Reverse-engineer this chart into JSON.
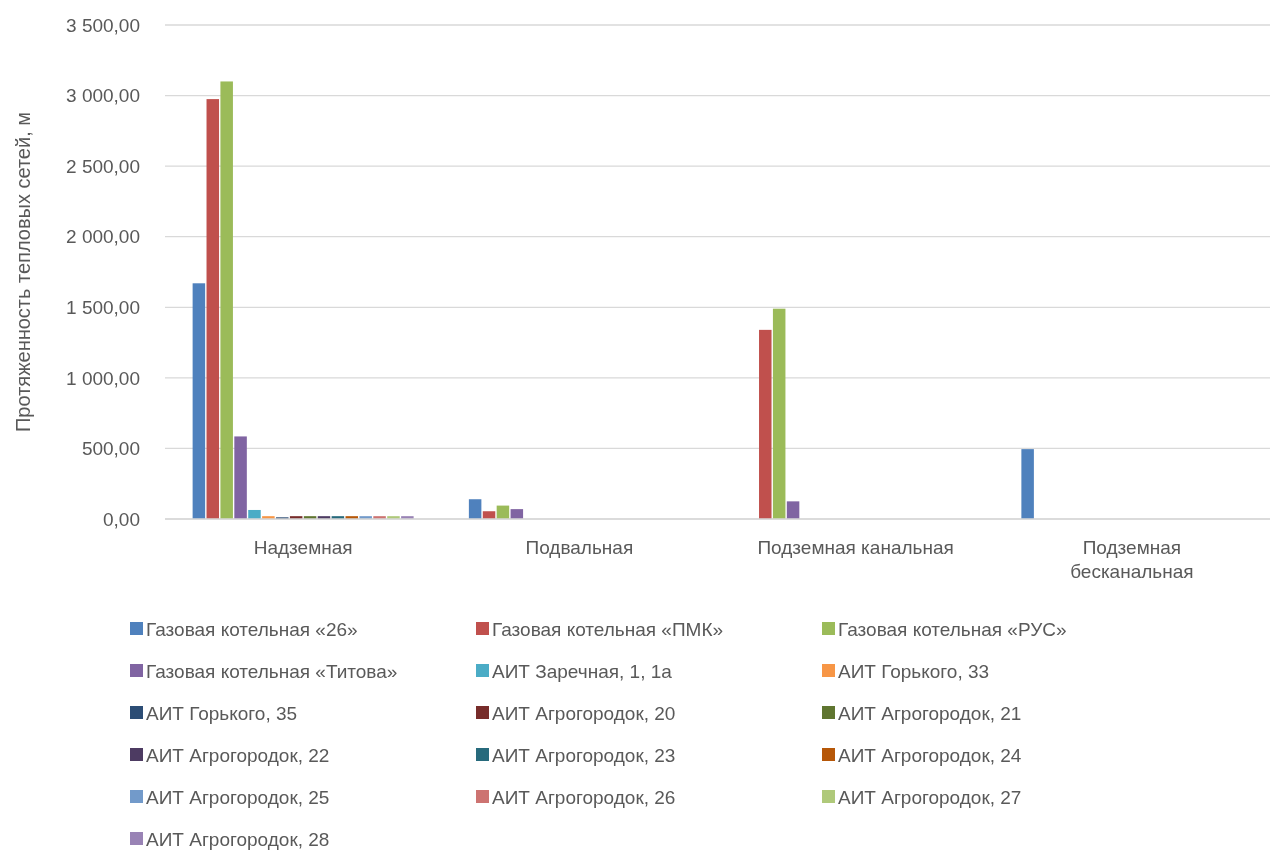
{
  "chart_data": {
    "type": "bar",
    "ylabel": "Протяженность тепловых сетей, м",
    "categories": [
      "Надземная",
      "Подвальная",
      "Подземная канальная",
      "Подземная бесканальная"
    ],
    "ylim": [
      0,
      3500
    ],
    "yticks": [
      {
        "value": 0,
        "label": "0,00"
      },
      {
        "value": 500,
        "label": "500,00"
      },
      {
        "value": 1000,
        "label": "1 000,00"
      },
      {
        "value": 1500,
        "label": "1 500,00"
      },
      {
        "value": 2000,
        "label": "2 000,00"
      },
      {
        "value": 2500,
        "label": "2 500,00"
      },
      {
        "value": 3000,
        "label": "3 000,00"
      },
      {
        "value": 3500,
        "label": "3 500,00"
      }
    ],
    "grid": "y",
    "legend": "bottom",
    "series": [
      {
        "name": "Газовая котельная «26»",
        "color": "#4f81bd",
        "values": [
          1670,
          140,
          null,
          495
        ]
      },
      {
        "name": "Газовая котельная «ПМК»",
        "color": "#c0504d",
        "values": [
          2975,
          55,
          1340,
          null
        ]
      },
      {
        "name": "Газовая котельная «РУС»",
        "color": "#9bbb59",
        "values": [
          3100,
          95,
          1490,
          null
        ]
      },
      {
        "name": "Газовая котельная «Титова»",
        "color": "#8064a2",
        "values": [
          585,
          70,
          125,
          null
        ]
      },
      {
        "name": "АИТ Заречная, 1, 1а",
        "color": "#4bacc6",
        "values": [
          64,
          null,
          null,
          null
        ]
      },
      {
        "name": "АИТ Горького, 33",
        "color": "#f79646",
        "values": [
          20,
          null,
          null,
          null
        ]
      },
      {
        "name": "АИТ Горького, 35",
        "color": "#2c4d75",
        "values": [
          12,
          null,
          null,
          null
        ]
      },
      {
        "name": "АИТ Агрогородок, 20",
        "color": "#772c2a",
        "values": [
          20,
          null,
          null,
          null
        ]
      },
      {
        "name": "АИТ Агрогородок, 21",
        "color": "#5f7530",
        "values": [
          20,
          null,
          null,
          null
        ]
      },
      {
        "name": "АИТ Агрогородок, 22",
        "color": "#4d3b62",
        "values": [
          20,
          null,
          null,
          null
        ]
      },
      {
        "name": "АИТ Агрогородок, 23",
        "color": "#276a7c",
        "values": [
          20,
          null,
          null,
          null
        ]
      },
      {
        "name": "АИТ Агрогородок, 24",
        "color": "#b65708",
        "values": [
          20,
          null,
          null,
          null
        ]
      },
      {
        "name": "АИТ Агрогородок, 25",
        "color": "#729aca",
        "values": [
          20,
          null,
          null,
          null
        ]
      },
      {
        "name": "АИТ Агрогородок, 26",
        "color": "#cd7371",
        "values": [
          20,
          null,
          null,
          null
        ]
      },
      {
        "name": "АИТ Агрогородок, 27",
        "color": "#afc97a",
        "values": [
          20,
          null,
          null,
          null
        ]
      },
      {
        "name": "АИТ Агрогородок, 28",
        "color": "#9983b5",
        "values": [
          20,
          null,
          null,
          null
        ]
      }
    ]
  }
}
